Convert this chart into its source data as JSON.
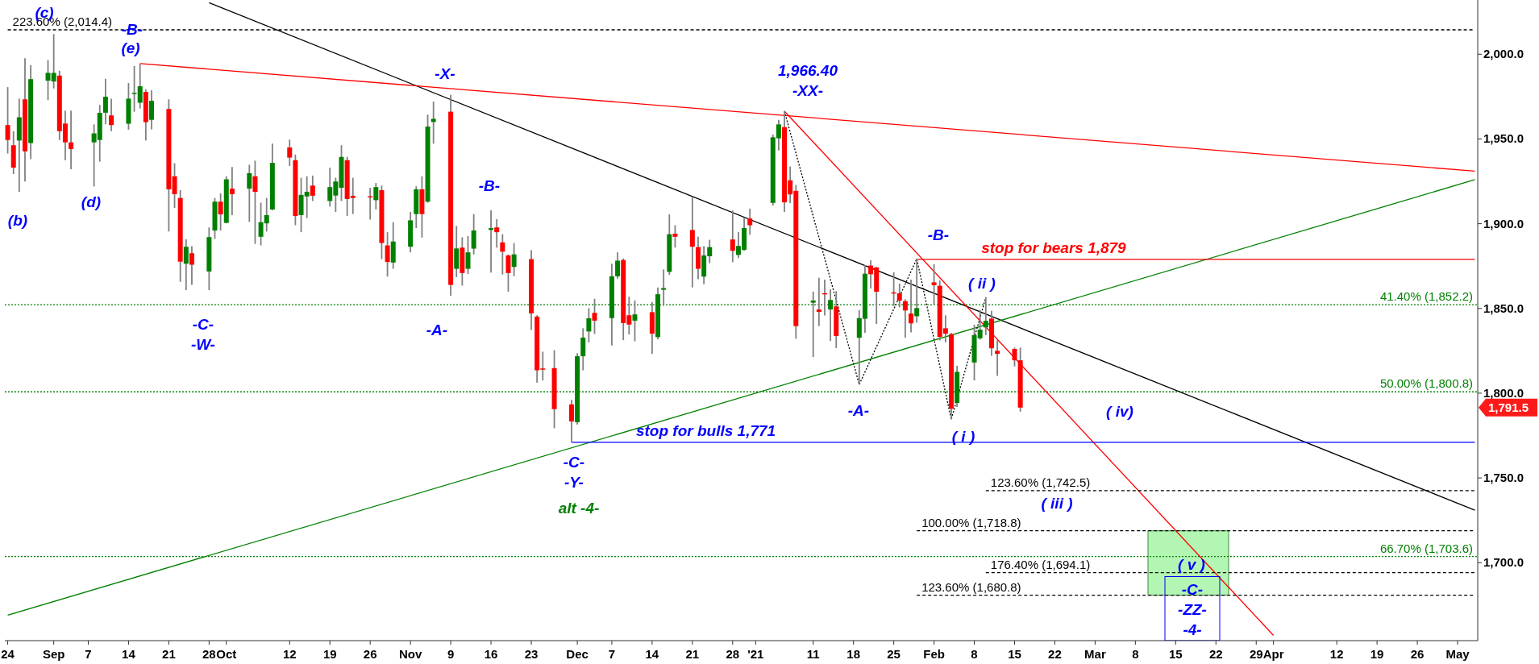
{
  "chart_data": {
    "type": "candlestick",
    "xlim": [
      "2020-08-24",
      "2021-05-06"
    ],
    "ylim": [
      1654,
      2032
    ],
    "yticks": [
      {
        "value": 1700,
        "label": "1,700.0"
      },
      {
        "value": 1750,
        "label": "1,750.0"
      },
      {
        "value": 1800,
        "label": "1,800.0"
      },
      {
        "value": 1850,
        "label": "1,850.0"
      },
      {
        "value": 1900,
        "label": "1,900.0"
      },
      {
        "value": 1950,
        "label": "1,950.0"
      },
      {
        "value": 2000,
        "label": "2,000.0"
      }
    ],
    "xticks": [
      {
        "value": "2020-08-24",
        "label": "24"
      },
      {
        "value": "2020-09-01",
        "label": "Sep"
      },
      {
        "value": "2020-09-07",
        "label": "7"
      },
      {
        "value": "2020-09-14",
        "label": "14"
      },
      {
        "value": "2020-09-21",
        "label": "21"
      },
      {
        "value": "2020-09-28",
        "label": "28"
      },
      {
        "value": "2020-10-01",
        "label": "Oct"
      },
      {
        "value": "2020-10-12",
        "label": "12"
      },
      {
        "value": "2020-10-19",
        "label": "19"
      },
      {
        "value": "2020-10-26",
        "label": "26"
      },
      {
        "value": "2020-11-02",
        "label": "Nov"
      },
      {
        "value": "2020-11-09",
        "label": "9"
      },
      {
        "value": "2020-11-16",
        "label": "16"
      },
      {
        "value": "2020-11-23",
        "label": "23"
      },
      {
        "value": "2020-12-01",
        "label": "Dec"
      },
      {
        "value": "2020-12-07",
        "label": "7"
      },
      {
        "value": "2020-12-14",
        "label": "14"
      },
      {
        "value": "2020-12-21",
        "label": "21"
      },
      {
        "value": "2020-12-28",
        "label": "28"
      },
      {
        "value": "2021-01-01",
        "label": "'21"
      },
      {
        "value": "2021-01-11",
        "label": "11"
      },
      {
        "value": "2021-01-18",
        "label": "18"
      },
      {
        "value": "2021-01-25",
        "label": "25"
      },
      {
        "value": "2021-02-01",
        "label": "Feb"
      },
      {
        "value": "2021-02-08",
        "label": "8"
      },
      {
        "value": "2021-02-15",
        "label": "15"
      },
      {
        "value": "2021-02-22",
        "label": "22"
      },
      {
        "value": "2021-03-01",
        "label": "Mar"
      },
      {
        "value": "2021-03-08",
        "label": "8"
      },
      {
        "value": "2021-03-15",
        "label": "15"
      },
      {
        "value": "2021-03-22",
        "label": "22"
      },
      {
        "value": "2021-03-29",
        "label": "29"
      },
      {
        "value": "2021-04-01",
        "label": "Apr"
      },
      {
        "value": "2021-04-12",
        "label": "12"
      },
      {
        "value": "2021-04-19",
        "label": "19"
      },
      {
        "value": "2021-04-26",
        "label": "26"
      },
      {
        "value": "2021-05-03",
        "label": "May"
      }
    ],
    "x": [
      "2020-08-24",
      "2020-08-25",
      "2020-08-26",
      "2020-08-27",
      "2020-08-28",
      "2020-08-31",
      "2020-09-01",
      "2020-09-02",
      "2020-09-03",
      "2020-09-04",
      "2020-09-08",
      "2020-09-09",
      "2020-09-10",
      "2020-09-11",
      "2020-09-14",
      "2020-09-15",
      "2020-09-16",
      "2020-09-17",
      "2020-09-18",
      "2020-09-21",
      "2020-09-22",
      "2020-09-23",
      "2020-09-24",
      "2020-09-25",
      "2020-09-28",
      "2020-09-29",
      "2020-09-30",
      "2020-10-01",
      "2020-10-02",
      "2020-10-05",
      "2020-10-06",
      "2020-10-07",
      "2020-10-08",
      "2020-10-09",
      "2020-10-12",
      "2020-10-13",
      "2020-10-14",
      "2020-10-15",
      "2020-10-16",
      "2020-10-19",
      "2020-10-20",
      "2020-10-21",
      "2020-10-22",
      "2020-10-23",
      "2020-10-26",
      "2020-10-27",
      "2020-10-28",
      "2020-10-29",
      "2020-10-30",
      "2020-11-02",
      "2020-11-03",
      "2020-11-04",
      "2020-11-05",
      "2020-11-06",
      "2020-11-09",
      "2020-11-10",
      "2020-11-11",
      "2020-11-12",
      "2020-11-13",
      "2020-11-16",
      "2020-11-17",
      "2020-11-18",
      "2020-11-19",
      "2020-11-20",
      "2020-11-23",
      "2020-11-24",
      "2020-11-25",
      "2020-11-27",
      "2020-11-30",
      "2020-12-01",
      "2020-12-02",
      "2020-12-03",
      "2020-12-04",
      "2020-12-07",
      "2020-12-08",
      "2020-12-09",
      "2020-12-10",
      "2020-12-11",
      "2020-12-14",
      "2020-12-15",
      "2020-12-16",
      "2020-12-17",
      "2020-12-18",
      "2020-12-21",
      "2020-12-22",
      "2020-12-23",
      "2020-12-24",
      "2020-12-28",
      "2020-12-29",
      "2020-12-30",
      "2020-12-31",
      "2021-01-04",
      "2021-01-05",
      "2021-01-06",
      "2021-01-07",
      "2021-01-08",
      "2021-01-11",
      "2021-01-12",
      "2021-01-13",
      "2021-01-14",
      "2021-01-15",
      "2021-01-19",
      "2021-01-20",
      "2021-01-21",
      "2021-01-22",
      "2021-01-25",
      "2021-01-26",
      "2021-01-27",
      "2021-01-28",
      "2021-01-29",
      "2021-02-01",
      "2021-02-02",
      "2021-02-03",
      "2021-02-04",
      "2021-02-05",
      "2021-02-08",
      "2021-02-09",
      "2021-02-10",
      "2021-02-11",
      "2021-02-12",
      "2021-02-15",
      "2021-02-16"
    ],
    "ohlc": [
      [
        1958.2,
        1980.6,
        1941.4,
        1949.4
      ],
      [
        1946.3,
        1954.6,
        1929.3,
        1933.1
      ],
      [
        1949.1,
        1973.8,
        1918.8,
        1962.8
      ],
      [
        1973.4,
        1997.6,
        1924.9,
        1942.7
      ],
      [
        1947.6,
        1993.6,
        1938.1,
        1985.3
      ],
      [
        1984.4,
        1996.5,
        1972.9,
        1989.0
      ],
      [
        1983.9,
        2011.9,
        1979.8,
        1989.0
      ],
      [
        1987.4,
        1990.3,
        1949.4,
        1954.6
      ],
      [
        1959.1,
        1966.8,
        1937.5,
        1948.0
      ],
      [
        1948.0,
        1966.8,
        1932.2,
        1944.1
      ],
      [
        1948.0,
        1958.6,
        1922.0,
        1953.3
      ],
      [
        1949.4,
        1970.1,
        1936.6,
        1965.4
      ],
      [
        1965.5,
        1985.5,
        1958.8,
        1974.9
      ],
      [
        1963.9,
        1973.8,
        1954.6,
        1958.2
      ],
      [
        1959.0,
        1983.0,
        1955.5,
        1973.8
      ],
      [
        1976.8,
        1993.0,
        1966.1,
        1977.2
      ],
      [
        1971.4,
        1994.5,
        1968.0,
        1981.1
      ],
      [
        1977.8,
        1979.3,
        1949.1,
        1959.9
      ],
      [
        1961.3,
        1978.7,
        1955.7,
        1972.5
      ],
      [
        1967.7,
        1973.4,
        1895.4,
        1920.3
      ],
      [
        1928.0,
        1935.7,
        1909.3,
        1917.4
      ],
      [
        1915.2,
        1919.8,
        1865.7,
        1877.6
      ],
      [
        1876.4,
        1890.8,
        1860.8,
        1886.4
      ],
      [
        1882.6,
        1886.8,
        1863.9,
        1875.8
      ],
      [
        1871.8,
        1897.8,
        1860.8,
        1892.1
      ],
      [
        1896.0,
        1915.2,
        1891.0,
        1913.0
      ],
      [
        1913.0,
        1917.9,
        1896.0,
        1905.5
      ],
      [
        1900.5,
        1928.0,
        1900.2,
        1926.2
      ],
      [
        1920.7,
        1933.5,
        1905.1,
        1917.4
      ],
      [
        1920.7,
        1934.8,
        1901.1,
        1929.8
      ],
      [
        1928.0,
        1937.2,
        1888.1,
        1918.8
      ],
      [
        1892.3,
        1912.4,
        1887.2,
        1900.9
      ],
      [
        1900.2,
        1915.2,
        1895.4,
        1905.1
      ],
      [
        1908.4,
        1947.3,
        1907.9,
        1935.9
      ],
      [
        1945.0,
        1949.6,
        1934.1,
        1939.0
      ],
      [
        1937.5,
        1940.8,
        1899.1,
        1904.6
      ],
      [
        1905.1,
        1927.1,
        1895.0,
        1917.0
      ],
      [
        1916.1,
        1928.0,
        1903.3,
        1918.8
      ],
      [
        1922.5,
        1928.4,
        1913.4,
        1916.5
      ],
      [
        1913.4,
        1933.1,
        1910.1,
        1921.6
      ],
      [
        1916.6,
        1927.1,
        1906.9,
        1924.9
      ],
      [
        1921.2,
        1946.3,
        1913.4,
        1939.4
      ],
      [
        1937.5,
        1939.4,
        1904.6,
        1914.6
      ],
      [
        1916.5,
        1927.1,
        1905.7,
        1915.2
      ],
      [
        1916.2,
        1921.2,
        1902.4,
        1915.8
      ],
      [
        1913.9,
        1924.0,
        1908.4,
        1921.6
      ],
      [
        1919.8,
        1922.5,
        1879.1,
        1888.6
      ],
      [
        1887.2,
        1895.0,
        1868.8,
        1877.4
      ],
      [
        1877.1,
        1900.9,
        1873.4,
        1889.5
      ],
      [
        1886.4,
        1907.0,
        1883.1,
        1902.0
      ],
      [
        1905.7,
        1922.1,
        1897.4,
        1920.3
      ],
      [
        1920.3,
        1928.0,
        1891.8,
        1905.7
      ],
      [
        1913.0,
        1964.3,
        1912.4,
        1957.3
      ],
      [
        1960.0,
        1972.0,
        1947.2,
        1961.9
      ],
      [
        1966.1,
        1976.0,
        1857.5,
        1863.9
      ],
      [
        1873.4,
        1898.7,
        1868.5,
        1885.4
      ],
      [
        1885.9,
        1892.0,
        1863.5,
        1870.9
      ],
      [
        1873.4,
        1892.7,
        1870.3,
        1883.1
      ],
      [
        1885.3,
        1905.7,
        1881.9,
        1896.0
      ],
      [
        1896.3,
        1907.9,
        1871.2,
        1897.4
      ],
      [
        1897.8,
        1902.7,
        1885.9,
        1895.0
      ],
      [
        1889.0,
        1893.8,
        1870.0,
        1883.5
      ],
      [
        1881.3,
        1881.9,
        1859.9,
        1870.9
      ],
      [
        1874.5,
        1888.6,
        1869.0,
        1881.9
      ],
      [
        1879.1,
        1884.4,
        1837.3,
        1847.1
      ],
      [
        1845.2,
        1846.0,
        1806.2,
        1813.5
      ],
      [
        1814.6,
        1824.5,
        1807.5,
        1814.2
      ],
      [
        1814.8,
        1825.4,
        1779.3,
        1790.6
      ],
      [
        1793.4,
        1796.1,
        1771.0,
        1783.3
      ],
      [
        1782.9,
        1823.6,
        1781.5,
        1821.8
      ],
      [
        1821.8,
        1838.3,
        1813.5,
        1832.8
      ],
      [
        1836.4,
        1850.2,
        1830.0,
        1844.2
      ],
      [
        1847.4,
        1855.7,
        1835.0,
        1842.8
      ],
      [
        1844.3,
        1876.4,
        1828.2,
        1869.0
      ],
      [
        1869.0,
        1883.1,
        1867.6,
        1878.2
      ],
      [
        1878.6,
        1879.5,
        1831.3,
        1841.4
      ],
      [
        1846.0,
        1856.9,
        1834.6,
        1840.5
      ],
      [
        1842.8,
        1854.7,
        1830.6,
        1846.5
      ],
      [
        1847.8,
        1853.8,
        1823.2,
        1835.1
      ],
      [
        1833.1,
        1862.4,
        1831.8,
        1858.4
      ],
      [
        1861.0,
        1873.0,
        1851.5,
        1862.0
      ],
      [
        1871.6,
        1905.5,
        1869.8,
        1893.8
      ],
      [
        1894.1,
        1899.1,
        1885.9,
        1892.3
      ],
      [
        1896.3,
        1915.5,
        1862.4,
        1886.4
      ],
      [
        1886.2,
        1892.3,
        1867.2,
        1873.4
      ],
      [
        1868.8,
        1886.8,
        1864.3,
        1881.3
      ],
      [
        1880.8,
        1890.5,
        1876.7,
        1886.2
      ],
      [
        1890.7,
        1907.8,
        1877.3,
        1884.0
      ],
      [
        1881.6,
        1895.1,
        1879.7,
        1886.9
      ],
      [
        1884.6,
        1903.5,
        1884.0,
        1897.5
      ],
      [
        1903.1,
        1908.9,
        1893.5,
        1899.1
      ],
      [
        1912.3,
        1952.6,
        1910.7,
        1951.0
      ],
      [
        1950.4,
        1961.3,
        1943.2,
        1958.6
      ],
      [
        1957.0,
        1966.4,
        1907.0,
        1912.6
      ],
      [
        1925.6,
        1933.7,
        1912.1,
        1917.3
      ],
      [
        1919.4,
        1922.9,
        1832.1,
        1839.6
      ],
      [
        1853.4,
        1859.9,
        1821.3,
        1854.7
      ],
      [
        1849.4,
        1868.1,
        1839.6,
        1848.0
      ],
      [
        1859.0,
        1867.0,
        1845.9,
        1858.7
      ],
      [
        1849.4,
        1861.3,
        1830.8,
        1855.0
      ],
      [
        1851.2,
        1860.2,
        1826.6,
        1833.7
      ],
      [
        1832.7,
        1849.1,
        1805.1,
        1844.3
      ],
      [
        1843.9,
        1875.6,
        1835.6,
        1870.5
      ],
      [
        1875.3,
        1878.4,
        1861.8,
        1870.2
      ],
      [
        1874.2,
        1874.5,
        1840.8,
        1859.9
      ],
      [
        1859.5,
        1871.3,
        1851.5,
        1859.4
      ],
      [
        1858.9,
        1864.6,
        1850.7,
        1854.6
      ],
      [
        1854.3,
        1855.4,
        1832.7,
        1848.8
      ],
      [
        1847.0,
        1867.0,
        1835.9,
        1841.2
      ],
      [
        1845.4,
        1879.3,
        1841.6,
        1850.2
      ],
      [
        1865.4,
        1876.1,
        1852.3,
        1863.7
      ],
      [
        1863.4,
        1866.5,
        1831.1,
        1833.2
      ],
      [
        1838.3,
        1845.9,
        1830.0,
        1835.1
      ],
      [
        1834.8,
        1835.6,
        1784.5,
        1790.8
      ],
      [
        1794.3,
        1816.2,
        1791.9,
        1812.6
      ],
      [
        1818.1,
        1840.4,
        1807.5,
        1834.3
      ],
      [
        1832.4,
        1849.1,
        1831.6,
        1837.5
      ],
      [
        1838.8,
        1856.6,
        1834.3,
        1842.7
      ],
      [
        1844.0,
        1848.6,
        1822.1,
        1826.5
      ],
      [
        1825.0,
        1831.2,
        1810.2,
        1823.2
      ],
      [
        1826.1,
        1826.9,
        1815.8,
        1819.4
      ],
      [
        1819.4,
        1826.9,
        1789.1,
        1791.5
      ]
    ],
    "series": [
      {
        "type": "line",
        "color": "#000000",
        "x": [
          "2020-09-28",
          "2021-05-06"
        ],
        "values": [
          2030.4,
          1731.0
        ]
      },
      {
        "type": "line",
        "color": "#ff0000",
        "x": [
          "2020-09-16",
          "2021-05-06"
        ],
        "values": [
          1994.5,
          1931
        ]
      },
      {
        "type": "line",
        "color": "#008000",
        "x": [
          "2020-08-24",
          "2021-05-06"
        ],
        "values": [
          1669,
          1926
        ]
      },
      {
        "type": "line",
        "color": "#ff0000",
        "x": [
          "2021-01-06",
          "2021-04-01"
        ],
        "values": [
          1966.4,
          1657.1
        ]
      },
      {
        "type": "line",
        "color": "#000000",
        "line_style": "dotted",
        "x": [
          "2021-01-06",
          "2021-01-19",
          "2021-01-29",
          "2021-02-04",
          "2021-02-10"
        ],
        "values": [
          1966.4,
          1805.1,
          1879.3,
          1784.5,
          1856.6
        ]
      },
      {
        "type": "line",
        "name": "stop for bears 1,879",
        "color": "#ff0000",
        "x": [
          "2021-01-29",
          "2021-05-06"
        ],
        "values": [
          1879,
          1879
        ]
      },
      {
        "type": "line",
        "name": "stop for bulls 1,771",
        "color": "#0000ff",
        "x": [
          "2020-11-30",
          "2021-05-06"
        ],
        "values": [
          1771,
          1771
        ]
      },
      {
        "type": "line",
        "name": "223.60% (2,014.4)",
        "color": "#000000",
        "line_style": "dashed",
        "x": [
          "2020-08-24",
          "2021-05-06"
        ],
        "values": [
          2014.4,
          2014.4
        ]
      },
      {
        "type": "line",
        "name": "123.60% (1,742.5)",
        "color": "#000000",
        "line_style": "dashed",
        "x": [
          "2021-02-10",
          "2021-05-06"
        ],
        "values": [
          1742.5,
          1742.5
        ]
      },
      {
        "type": "line",
        "name": "100.00% (1,718.8)",
        "color": "#000000",
        "line_style": "dashed",
        "x": [
          "2021-01-29",
          "2021-05-06"
        ],
        "values": [
          1718.8,
          1718.8
        ]
      },
      {
        "type": "line",
        "name": "176.40% (1,694.1)",
        "color": "#000000",
        "line_style": "dashed",
        "x": [
          "2021-02-10",
          "2021-05-06"
        ],
        "values": [
          1694.1,
          1694.1
        ]
      },
      {
        "type": "line",
        "name": "123.60% (1,680.8)",
        "color": "#000000",
        "line_style": "dashed",
        "x": [
          "2021-01-29",
          "2021-05-06"
        ],
        "values": [
          1680.8,
          1680.8
        ]
      }
    ],
    "ref_lines": [
      {
        "axis": "y",
        "value": 1852.2,
        "label": "41.40% (1,852.2)",
        "color": "#008000",
        "line_style": "dotted"
      },
      {
        "axis": "y",
        "value": 1800.8,
        "label": "50.00% (1,800.8)",
        "color": "#008000",
        "line_style": "dotted"
      },
      {
        "axis": "y",
        "value": 1703.6,
        "label": "66.70% (1,703.6)",
        "color": "#008000",
        "line_style": "dotted"
      }
    ],
    "annotations": [
      "(c)",
      "-B-",
      "(e)",
      "(b)",
      "(d)",
      "-C-\n-W-",
      "-X-",
      "-A-",
      "-B-",
      "-C-\n-Y-",
      "alt -4-",
      "1,966.40\n-XX-",
      "-A-",
      "-B-",
      "( ii )",
      "( i )",
      "( iii )",
      "( iv)",
      "( v )",
      "-C-\n-ZZ-\n-4-",
      "1,791.5"
    ]
  }
}
